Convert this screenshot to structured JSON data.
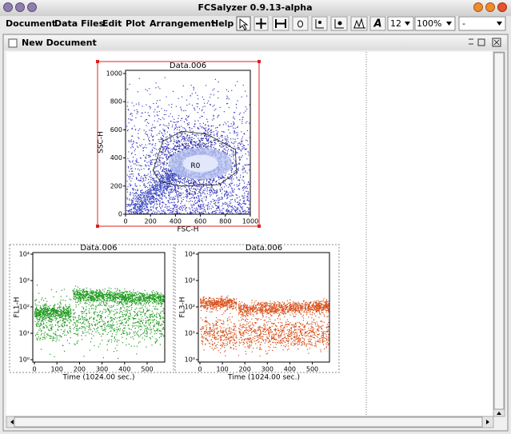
{
  "window": {
    "title": "FCSalyzer 0.9.13-alpha"
  },
  "menu": [
    "Document",
    "Data Files",
    "Edit",
    "Plot",
    "Arrangement",
    "Help"
  ],
  "toolbar": {
    "font_size": "12",
    "zoom": "100%",
    "selection": "-"
  },
  "document": {
    "title": "New Document"
  },
  "plots": [
    {
      "title": "Data.006",
      "x_label": "FSC-H",
      "y_label": "SSC-H",
      "gate": "R0",
      "log_y": false,
      "xticks": [
        0,
        200,
        400,
        600,
        800,
        1000
      ],
      "yticks": [
        0,
        200,
        400,
        600,
        800,
        1000
      ],
      "color": "#2a2ab8"
    },
    {
      "title": "Data.006",
      "x_label": "Time (1024.00 sec.)",
      "y_label": "FL1-H",
      "log_y": true,
      "xticks": [
        0,
        100,
        200,
        300,
        400,
        500
      ],
      "yticks": [
        {
          "value": 1,
          "label": "10⁰"
        },
        {
          "value": 10,
          "label": "10¹"
        },
        {
          "value": 100,
          "label": "10²"
        },
        {
          "value": 1000,
          "label": "10³"
        },
        {
          "value": 10000,
          "label": "10⁴"
        }
      ],
      "color": "#1f9a1f"
    },
    {
      "title": "Data.006",
      "x_label": "Time (1024.00 sec.)",
      "y_label": "FL3-H",
      "log_y": true,
      "xticks": [
        0,
        100,
        200,
        300,
        400,
        500
      ],
      "yticks": [
        {
          "value": 1,
          "label": "10⁰"
        },
        {
          "value": 10,
          "label": "10¹"
        },
        {
          "value": 100,
          "label": "10²"
        },
        {
          "value": 1000,
          "label": "10³"
        },
        {
          "value": 10000,
          "label": "10⁴"
        }
      ],
      "color": "#d8501a"
    }
  ]
}
